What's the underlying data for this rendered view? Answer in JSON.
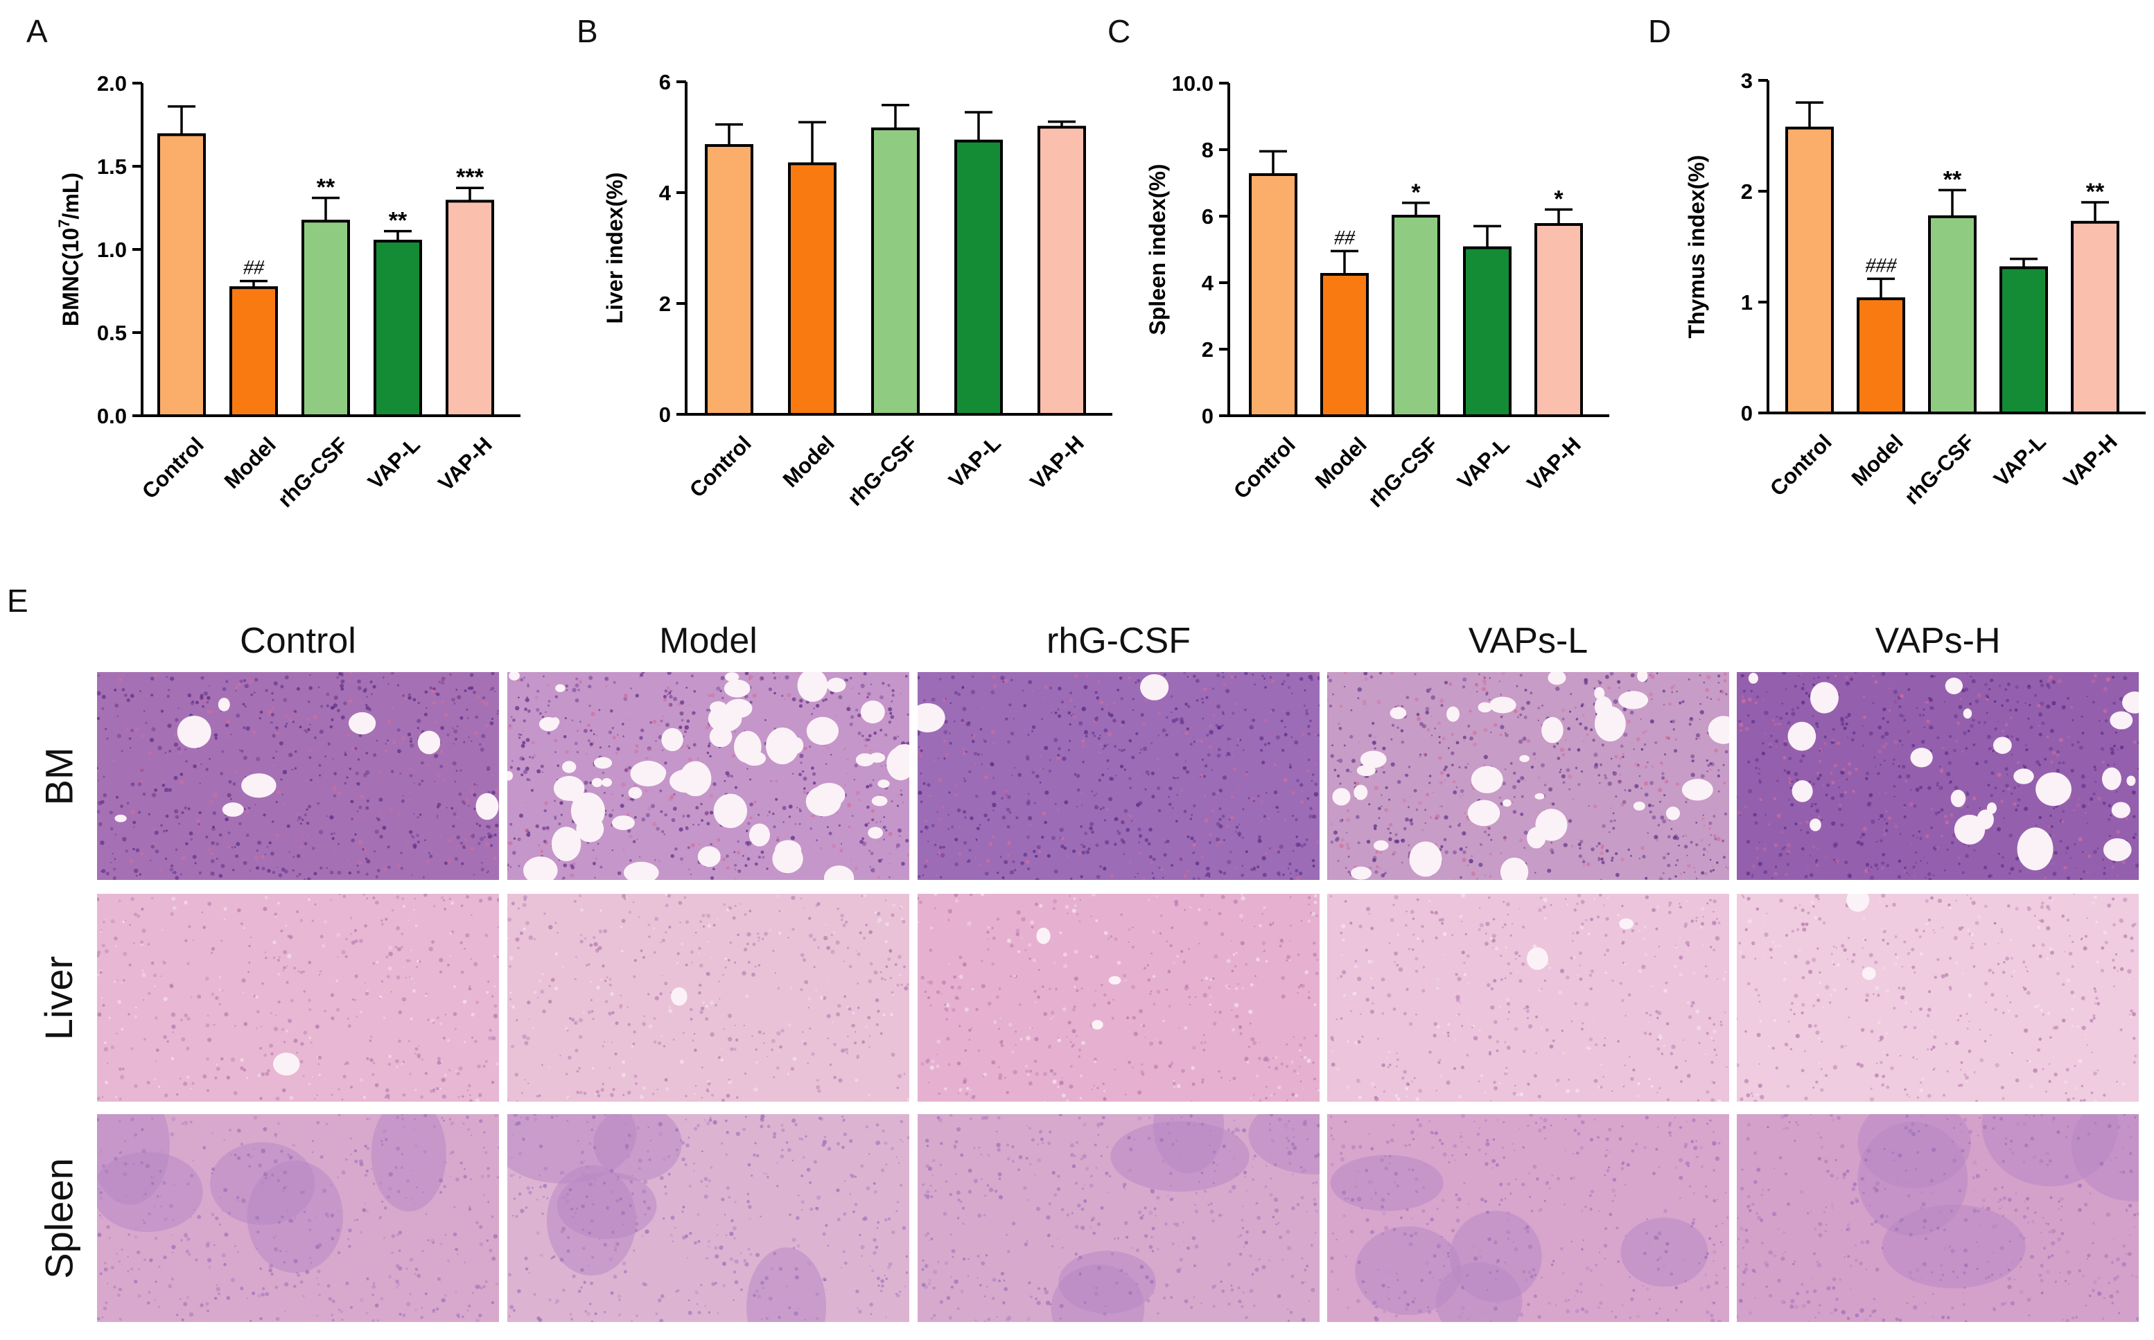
{
  "panel_letters": [
    "A",
    "B",
    "C",
    "D",
    "E"
  ],
  "chart_data": [
    {
      "type": "bar",
      "panel": "A",
      "categories": [
        "Control",
        "Model",
        "rhG-CSF",
        "VAP-L",
        "VAP-H"
      ],
      "values": [
        1.69,
        0.77,
        1.17,
        1.05,
        1.29
      ],
      "errors": [
        0.17,
        0.04,
        0.14,
        0.06,
        0.08
      ],
      "annotations": [
        "",
        "##",
        "**",
        "**",
        "***"
      ],
      "ylabel_parts": [
        "BMNC(10",
        "7",
        "/mL)"
      ],
      "ylim": [
        0,
        2.0
      ],
      "yticks": [
        "0.0",
        "0.5",
        "1.0",
        "1.5",
        "2.0"
      ],
      "colors": [
        "#fbad6a",
        "#fa7a12",
        "#8fcc82",
        "#148c35",
        "#fbbfae"
      ]
    },
    {
      "type": "bar",
      "panel": "B",
      "categories": [
        "Control",
        "Model",
        "rhG-CSF",
        "VAP-L",
        "VAP-H"
      ],
      "values": [
        4.85,
        4.52,
        5.15,
        4.93,
        5.18
      ],
      "errors": [
        0.38,
        0.75,
        0.43,
        0.52,
        0.1
      ],
      "annotations": [
        "",
        "",
        "",
        "",
        ""
      ],
      "ylabel": "Liver index(%)",
      "ylim": [
        0,
        6
      ],
      "yticks": [
        "0",
        "2",
        "4",
        "6"
      ],
      "colors": [
        "#fbad6a",
        "#fa7a12",
        "#8fcc82",
        "#148c35",
        "#fbbfae"
      ]
    },
    {
      "type": "bar",
      "panel": "C",
      "categories": [
        "Control",
        "Model",
        "rhG-CSF",
        "VAP-L",
        "VAP-H"
      ],
      "values": [
        7.25,
        4.25,
        6.0,
        5.05,
        5.75
      ],
      "errors": [
        0.7,
        0.7,
        0.4,
        0.65,
        0.45
      ],
      "annotations": [
        "",
        "##",
        "*",
        "",
        "*"
      ],
      "ylabel": "Spleen index(%)",
      "ylim": [
        0,
        10.0
      ],
      "yticks": [
        "0",
        "2",
        "4",
        "6",
        "8",
        "10.0"
      ],
      "colors": [
        "#fbad6a",
        "#fa7a12",
        "#8fcc82",
        "#148c35",
        "#fbbfae"
      ]
    },
    {
      "type": "bar",
      "panel": "D",
      "categories": [
        "Control",
        "Model",
        "rhG-CSF",
        "VAP-L",
        "VAP-H"
      ],
      "values": [
        2.57,
        1.03,
        1.77,
        1.31,
        1.72
      ],
      "errors": [
        0.23,
        0.18,
        0.24,
        0.08,
        0.18
      ],
      "annotations": [
        "",
        "###",
        "**",
        "",
        "**"
      ],
      "ylabel": "Thymus index(%)",
      "ylim": [
        0,
        3
      ],
      "yticks": [
        "0",
        "1",
        "2",
        "3"
      ],
      "colors": [
        "#fbad6a",
        "#fa7a12",
        "#8fcc82",
        "#148c35",
        "#fbbfae"
      ]
    }
  ],
  "histology": {
    "columns": [
      "Control",
      "Model",
      "rhG-CSF",
      "VAPs-L",
      "VAPs-H"
    ],
    "rows": [
      "BM",
      "Liver",
      "Spleen"
    ]
  }
}
